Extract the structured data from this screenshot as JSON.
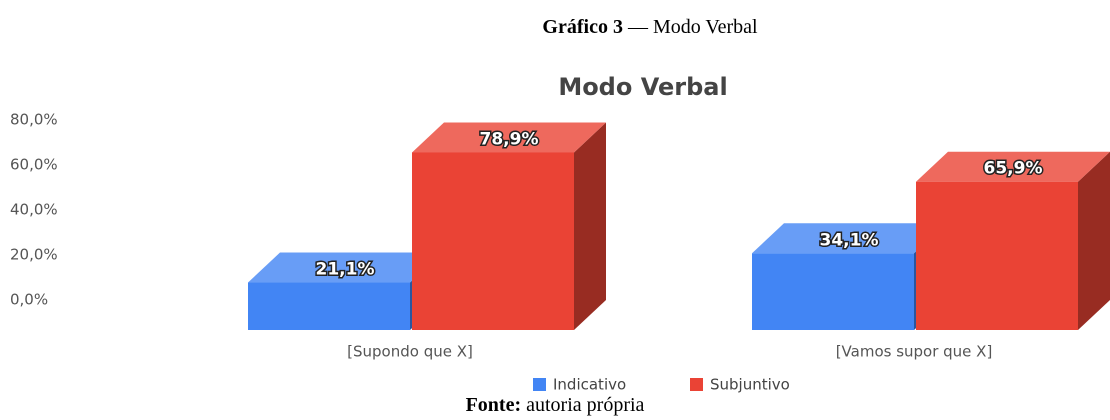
{
  "caption": {
    "label": "Gráfico 3",
    "text": "— Modo Verbal"
  },
  "source": {
    "label": "Fonte:",
    "text": "autoria própria"
  },
  "chart_data": {
    "type": "bar3d",
    "title": "Modo Verbal",
    "categories": [
      "[Supondo que X]",
      "[Vamos supor que X]"
    ],
    "series": [
      {
        "name": "Indicativo",
        "color": "#4285f4",
        "values": [
          21.1,
          34.1
        ],
        "value_labels": [
          "21,1%",
          "34,1%"
        ]
      },
      {
        "name": "Subjuntivo",
        "color": "#ea4335",
        "values": [
          78.9,
          65.9
        ],
        "value_labels": [
          "78,9%",
          "65,9%"
        ]
      }
    ],
    "ylim": [
      0,
      80
    ],
    "yticks": [
      {
        "value": 0,
        "label": "0,0%"
      },
      {
        "value": 20,
        "label": "20,0%"
      },
      {
        "value": 40,
        "label": "40,0%"
      },
      {
        "value": 60,
        "label": "60,0%"
      },
      {
        "value": 80,
        "label": "80,0%"
      }
    ],
    "grid": false
  }
}
